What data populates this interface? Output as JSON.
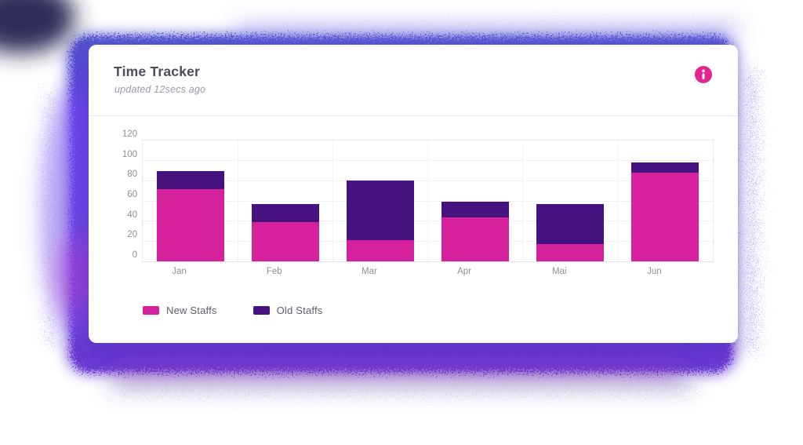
{
  "card": {
    "header": {
      "title": "Time Tracker",
      "subtitle": "updated 12secs ago",
      "info_icon": "info-icon"
    }
  },
  "colors": {
    "new_staffs_pink": "#d6219c",
    "old_staffs_purple": "#45127f",
    "info_icon_bg": "#e3268f",
    "glow_purple": "#5b35e0"
  },
  "chart_data": {
    "type": "bar",
    "stacked": true,
    "title": "",
    "xlabel": "",
    "ylabel": "",
    "categories": [
      "Jan",
      "Feb",
      "Mar",
      "Apr",
      "Mai",
      "Jun"
    ],
    "series": [
      {
        "name": "New Staffs",
        "color": "#d6219c",
        "values": [
          72,
          39,
          21,
          44,
          17,
          88
        ]
      },
      {
        "name": "Old Staffs",
        "color": "#45127f",
        "values": [
          18,
          18,
          59,
          15,
          40,
          10
        ]
      }
    ],
    "ylim": [
      0,
      120
    ],
    "yticks": [
      0,
      20,
      40,
      60,
      80,
      100,
      120
    ],
    "grid": true,
    "legend_position": "bottom"
  }
}
